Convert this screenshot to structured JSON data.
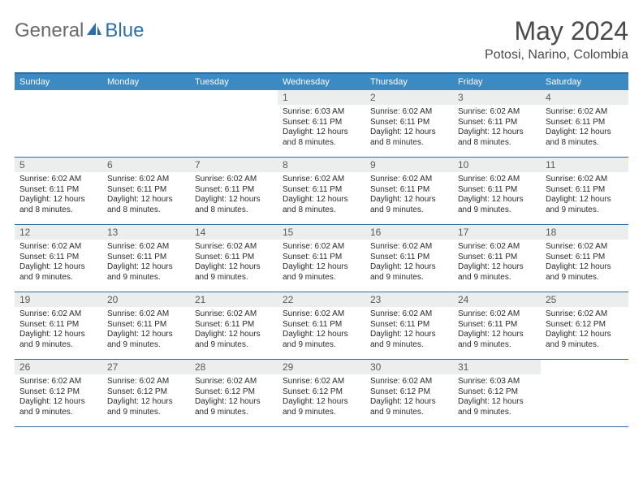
{
  "logo": {
    "text1": "General",
    "text2": "Blue"
  },
  "title": "May 2024",
  "location": "Potosi, Narino, Colombia",
  "colors": {
    "header_bg": "#3b8ac4",
    "border": "#2f6fa8",
    "daynum_bg": "#eceded",
    "logo_gray": "#6a6a6a",
    "logo_blue": "#2f6fa8"
  },
  "weekdays": [
    "Sunday",
    "Monday",
    "Tuesday",
    "Wednesday",
    "Thursday",
    "Friday",
    "Saturday"
  ],
  "weeks": [
    [
      {
        "num": "",
        "sunrise": "",
        "sunset": "",
        "daylight": ""
      },
      {
        "num": "",
        "sunrise": "",
        "sunset": "",
        "daylight": ""
      },
      {
        "num": "",
        "sunrise": "",
        "sunset": "",
        "daylight": ""
      },
      {
        "num": "1",
        "sunrise": "Sunrise: 6:03 AM",
        "sunset": "Sunset: 6:11 PM",
        "daylight": "Daylight: 12 hours and 8 minutes."
      },
      {
        "num": "2",
        "sunrise": "Sunrise: 6:02 AM",
        "sunset": "Sunset: 6:11 PM",
        "daylight": "Daylight: 12 hours and 8 minutes."
      },
      {
        "num": "3",
        "sunrise": "Sunrise: 6:02 AM",
        "sunset": "Sunset: 6:11 PM",
        "daylight": "Daylight: 12 hours and 8 minutes."
      },
      {
        "num": "4",
        "sunrise": "Sunrise: 6:02 AM",
        "sunset": "Sunset: 6:11 PM",
        "daylight": "Daylight: 12 hours and 8 minutes."
      }
    ],
    [
      {
        "num": "5",
        "sunrise": "Sunrise: 6:02 AM",
        "sunset": "Sunset: 6:11 PM",
        "daylight": "Daylight: 12 hours and 8 minutes."
      },
      {
        "num": "6",
        "sunrise": "Sunrise: 6:02 AM",
        "sunset": "Sunset: 6:11 PM",
        "daylight": "Daylight: 12 hours and 8 minutes."
      },
      {
        "num": "7",
        "sunrise": "Sunrise: 6:02 AM",
        "sunset": "Sunset: 6:11 PM",
        "daylight": "Daylight: 12 hours and 8 minutes."
      },
      {
        "num": "8",
        "sunrise": "Sunrise: 6:02 AM",
        "sunset": "Sunset: 6:11 PM",
        "daylight": "Daylight: 12 hours and 8 minutes."
      },
      {
        "num": "9",
        "sunrise": "Sunrise: 6:02 AM",
        "sunset": "Sunset: 6:11 PM",
        "daylight": "Daylight: 12 hours and 9 minutes."
      },
      {
        "num": "10",
        "sunrise": "Sunrise: 6:02 AM",
        "sunset": "Sunset: 6:11 PM",
        "daylight": "Daylight: 12 hours and 9 minutes."
      },
      {
        "num": "11",
        "sunrise": "Sunrise: 6:02 AM",
        "sunset": "Sunset: 6:11 PM",
        "daylight": "Daylight: 12 hours and 9 minutes."
      }
    ],
    [
      {
        "num": "12",
        "sunrise": "Sunrise: 6:02 AM",
        "sunset": "Sunset: 6:11 PM",
        "daylight": "Daylight: 12 hours and 9 minutes."
      },
      {
        "num": "13",
        "sunrise": "Sunrise: 6:02 AM",
        "sunset": "Sunset: 6:11 PM",
        "daylight": "Daylight: 12 hours and 9 minutes."
      },
      {
        "num": "14",
        "sunrise": "Sunrise: 6:02 AM",
        "sunset": "Sunset: 6:11 PM",
        "daylight": "Daylight: 12 hours and 9 minutes."
      },
      {
        "num": "15",
        "sunrise": "Sunrise: 6:02 AM",
        "sunset": "Sunset: 6:11 PM",
        "daylight": "Daylight: 12 hours and 9 minutes."
      },
      {
        "num": "16",
        "sunrise": "Sunrise: 6:02 AM",
        "sunset": "Sunset: 6:11 PM",
        "daylight": "Daylight: 12 hours and 9 minutes."
      },
      {
        "num": "17",
        "sunrise": "Sunrise: 6:02 AM",
        "sunset": "Sunset: 6:11 PM",
        "daylight": "Daylight: 12 hours and 9 minutes."
      },
      {
        "num": "18",
        "sunrise": "Sunrise: 6:02 AM",
        "sunset": "Sunset: 6:11 PM",
        "daylight": "Daylight: 12 hours and 9 minutes."
      }
    ],
    [
      {
        "num": "19",
        "sunrise": "Sunrise: 6:02 AM",
        "sunset": "Sunset: 6:11 PM",
        "daylight": "Daylight: 12 hours and 9 minutes."
      },
      {
        "num": "20",
        "sunrise": "Sunrise: 6:02 AM",
        "sunset": "Sunset: 6:11 PM",
        "daylight": "Daylight: 12 hours and 9 minutes."
      },
      {
        "num": "21",
        "sunrise": "Sunrise: 6:02 AM",
        "sunset": "Sunset: 6:11 PM",
        "daylight": "Daylight: 12 hours and 9 minutes."
      },
      {
        "num": "22",
        "sunrise": "Sunrise: 6:02 AM",
        "sunset": "Sunset: 6:11 PM",
        "daylight": "Daylight: 12 hours and 9 minutes."
      },
      {
        "num": "23",
        "sunrise": "Sunrise: 6:02 AM",
        "sunset": "Sunset: 6:11 PM",
        "daylight": "Daylight: 12 hours and 9 minutes."
      },
      {
        "num": "24",
        "sunrise": "Sunrise: 6:02 AM",
        "sunset": "Sunset: 6:11 PM",
        "daylight": "Daylight: 12 hours and 9 minutes."
      },
      {
        "num": "25",
        "sunrise": "Sunrise: 6:02 AM",
        "sunset": "Sunset: 6:12 PM",
        "daylight": "Daylight: 12 hours and 9 minutes."
      }
    ],
    [
      {
        "num": "26",
        "sunrise": "Sunrise: 6:02 AM",
        "sunset": "Sunset: 6:12 PM",
        "daylight": "Daylight: 12 hours and 9 minutes."
      },
      {
        "num": "27",
        "sunrise": "Sunrise: 6:02 AM",
        "sunset": "Sunset: 6:12 PM",
        "daylight": "Daylight: 12 hours and 9 minutes."
      },
      {
        "num": "28",
        "sunrise": "Sunrise: 6:02 AM",
        "sunset": "Sunset: 6:12 PM",
        "daylight": "Daylight: 12 hours and 9 minutes."
      },
      {
        "num": "29",
        "sunrise": "Sunrise: 6:02 AM",
        "sunset": "Sunset: 6:12 PM",
        "daylight": "Daylight: 12 hours and 9 minutes."
      },
      {
        "num": "30",
        "sunrise": "Sunrise: 6:02 AM",
        "sunset": "Sunset: 6:12 PM",
        "daylight": "Daylight: 12 hours and 9 minutes."
      },
      {
        "num": "31",
        "sunrise": "Sunrise: 6:03 AM",
        "sunset": "Sunset: 6:12 PM",
        "daylight": "Daylight: 12 hours and 9 minutes."
      },
      {
        "num": "",
        "sunrise": "",
        "sunset": "",
        "daylight": ""
      }
    ]
  ]
}
